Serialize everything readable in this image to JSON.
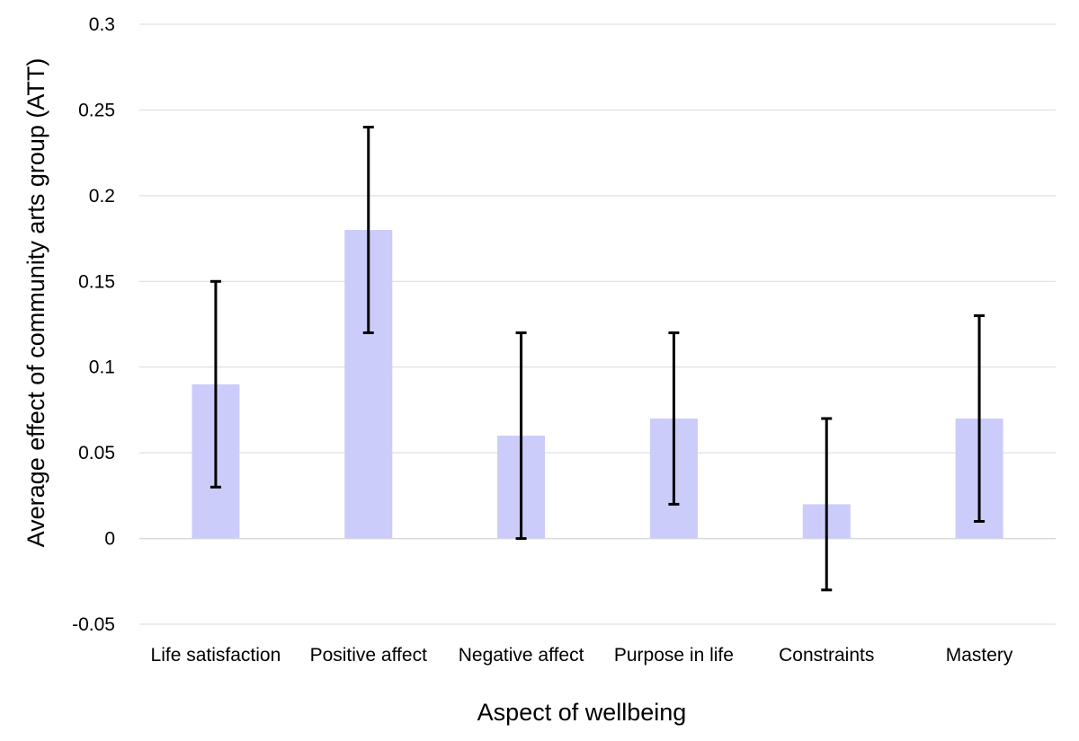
{
  "chart_data": {
    "type": "bar",
    "title": "",
    "xlabel": "Aspect of wellbeing",
    "ylabel": "Average effect of community arts group (ATT)",
    "categories": [
      "Life satisfaction",
      "Positive affect",
      "Negative affect",
      "Purpose in life",
      "Constraints",
      "Mastery"
    ],
    "series": [
      {
        "name": "ATT",
        "values": [
          0.09,
          0.18,
          0.06,
          0.07,
          0.02,
          0.07
        ],
        "error_low": [
          0.03,
          0.12,
          0.0,
          0.02,
          -0.03,
          0.01
        ],
        "error_high": [
          0.15,
          0.24,
          0.12,
          0.12,
          0.07,
          0.13
        ]
      }
    ],
    "ylim": [
      -0.05,
      0.3
    ],
    "yticks": [
      -0.05,
      0,
      0.05,
      0.1,
      0.15,
      0.2,
      0.25,
      0.3
    ],
    "ytick_labels": [
      "-0.05",
      "0",
      "0.05",
      "0.1",
      "0.15",
      "0.2",
      "0.25",
      "0.3"
    ],
    "grid": true,
    "legend": "none",
    "colors": {
      "bar": "#ccccfa",
      "error_bar": "#000000",
      "grid": "#d9d9d9"
    }
  }
}
